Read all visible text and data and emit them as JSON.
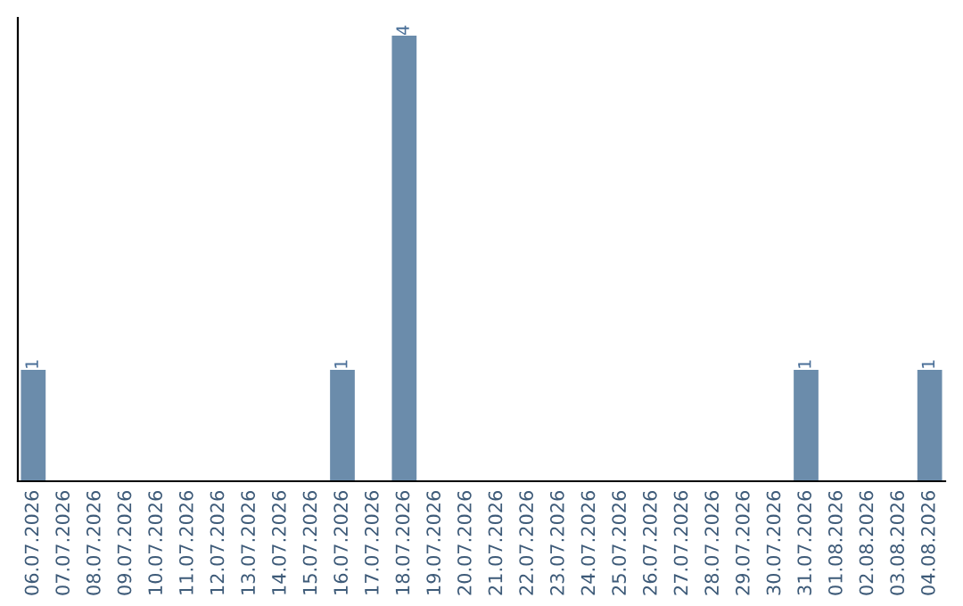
{
  "chart_data": {
    "type": "bar",
    "categories": [
      "06.07.2026",
      "07.07.2026",
      "08.07.2026",
      "09.07.2026",
      "10.07.2026",
      "11.07.2026",
      "12.07.2026",
      "13.07.2026",
      "14.07.2026",
      "15.07.2026",
      "16.07.2026",
      "17.07.2026",
      "18.07.2026",
      "19.07.2026",
      "20.07.2026",
      "21.07.2026",
      "22.07.2026",
      "23.07.2026",
      "24.07.2026",
      "25.07.2026",
      "26.07.2026",
      "27.07.2026",
      "28.07.2026",
      "29.07.2026",
      "30.07.2026",
      "31.07.2026",
      "01.08.2026",
      "02.08.2026",
      "03.08.2026",
      "04.08.2026"
    ],
    "values": [
      1,
      0,
      0,
      0,
      0,
      0,
      0,
      0,
      0,
      0,
      1,
      0,
      4,
      0,
      0,
      0,
      0,
      0,
      0,
      0,
      0,
      0,
      0,
      0,
      0,
      1,
      0,
      0,
      0,
      1
    ],
    "value_labels": [
      "1",
      null,
      null,
      null,
      null,
      null,
      null,
      null,
      null,
      null,
      "1",
      null,
      "4",
      null,
      null,
      null,
      null,
      null,
      null,
      null,
      null,
      null,
      null,
      null,
      null,
      "1",
      null,
      null,
      null,
      "1"
    ],
    "color": "#6b8cab",
    "tick_labels": "x",
    "grid": false,
    "legend": false
  }
}
